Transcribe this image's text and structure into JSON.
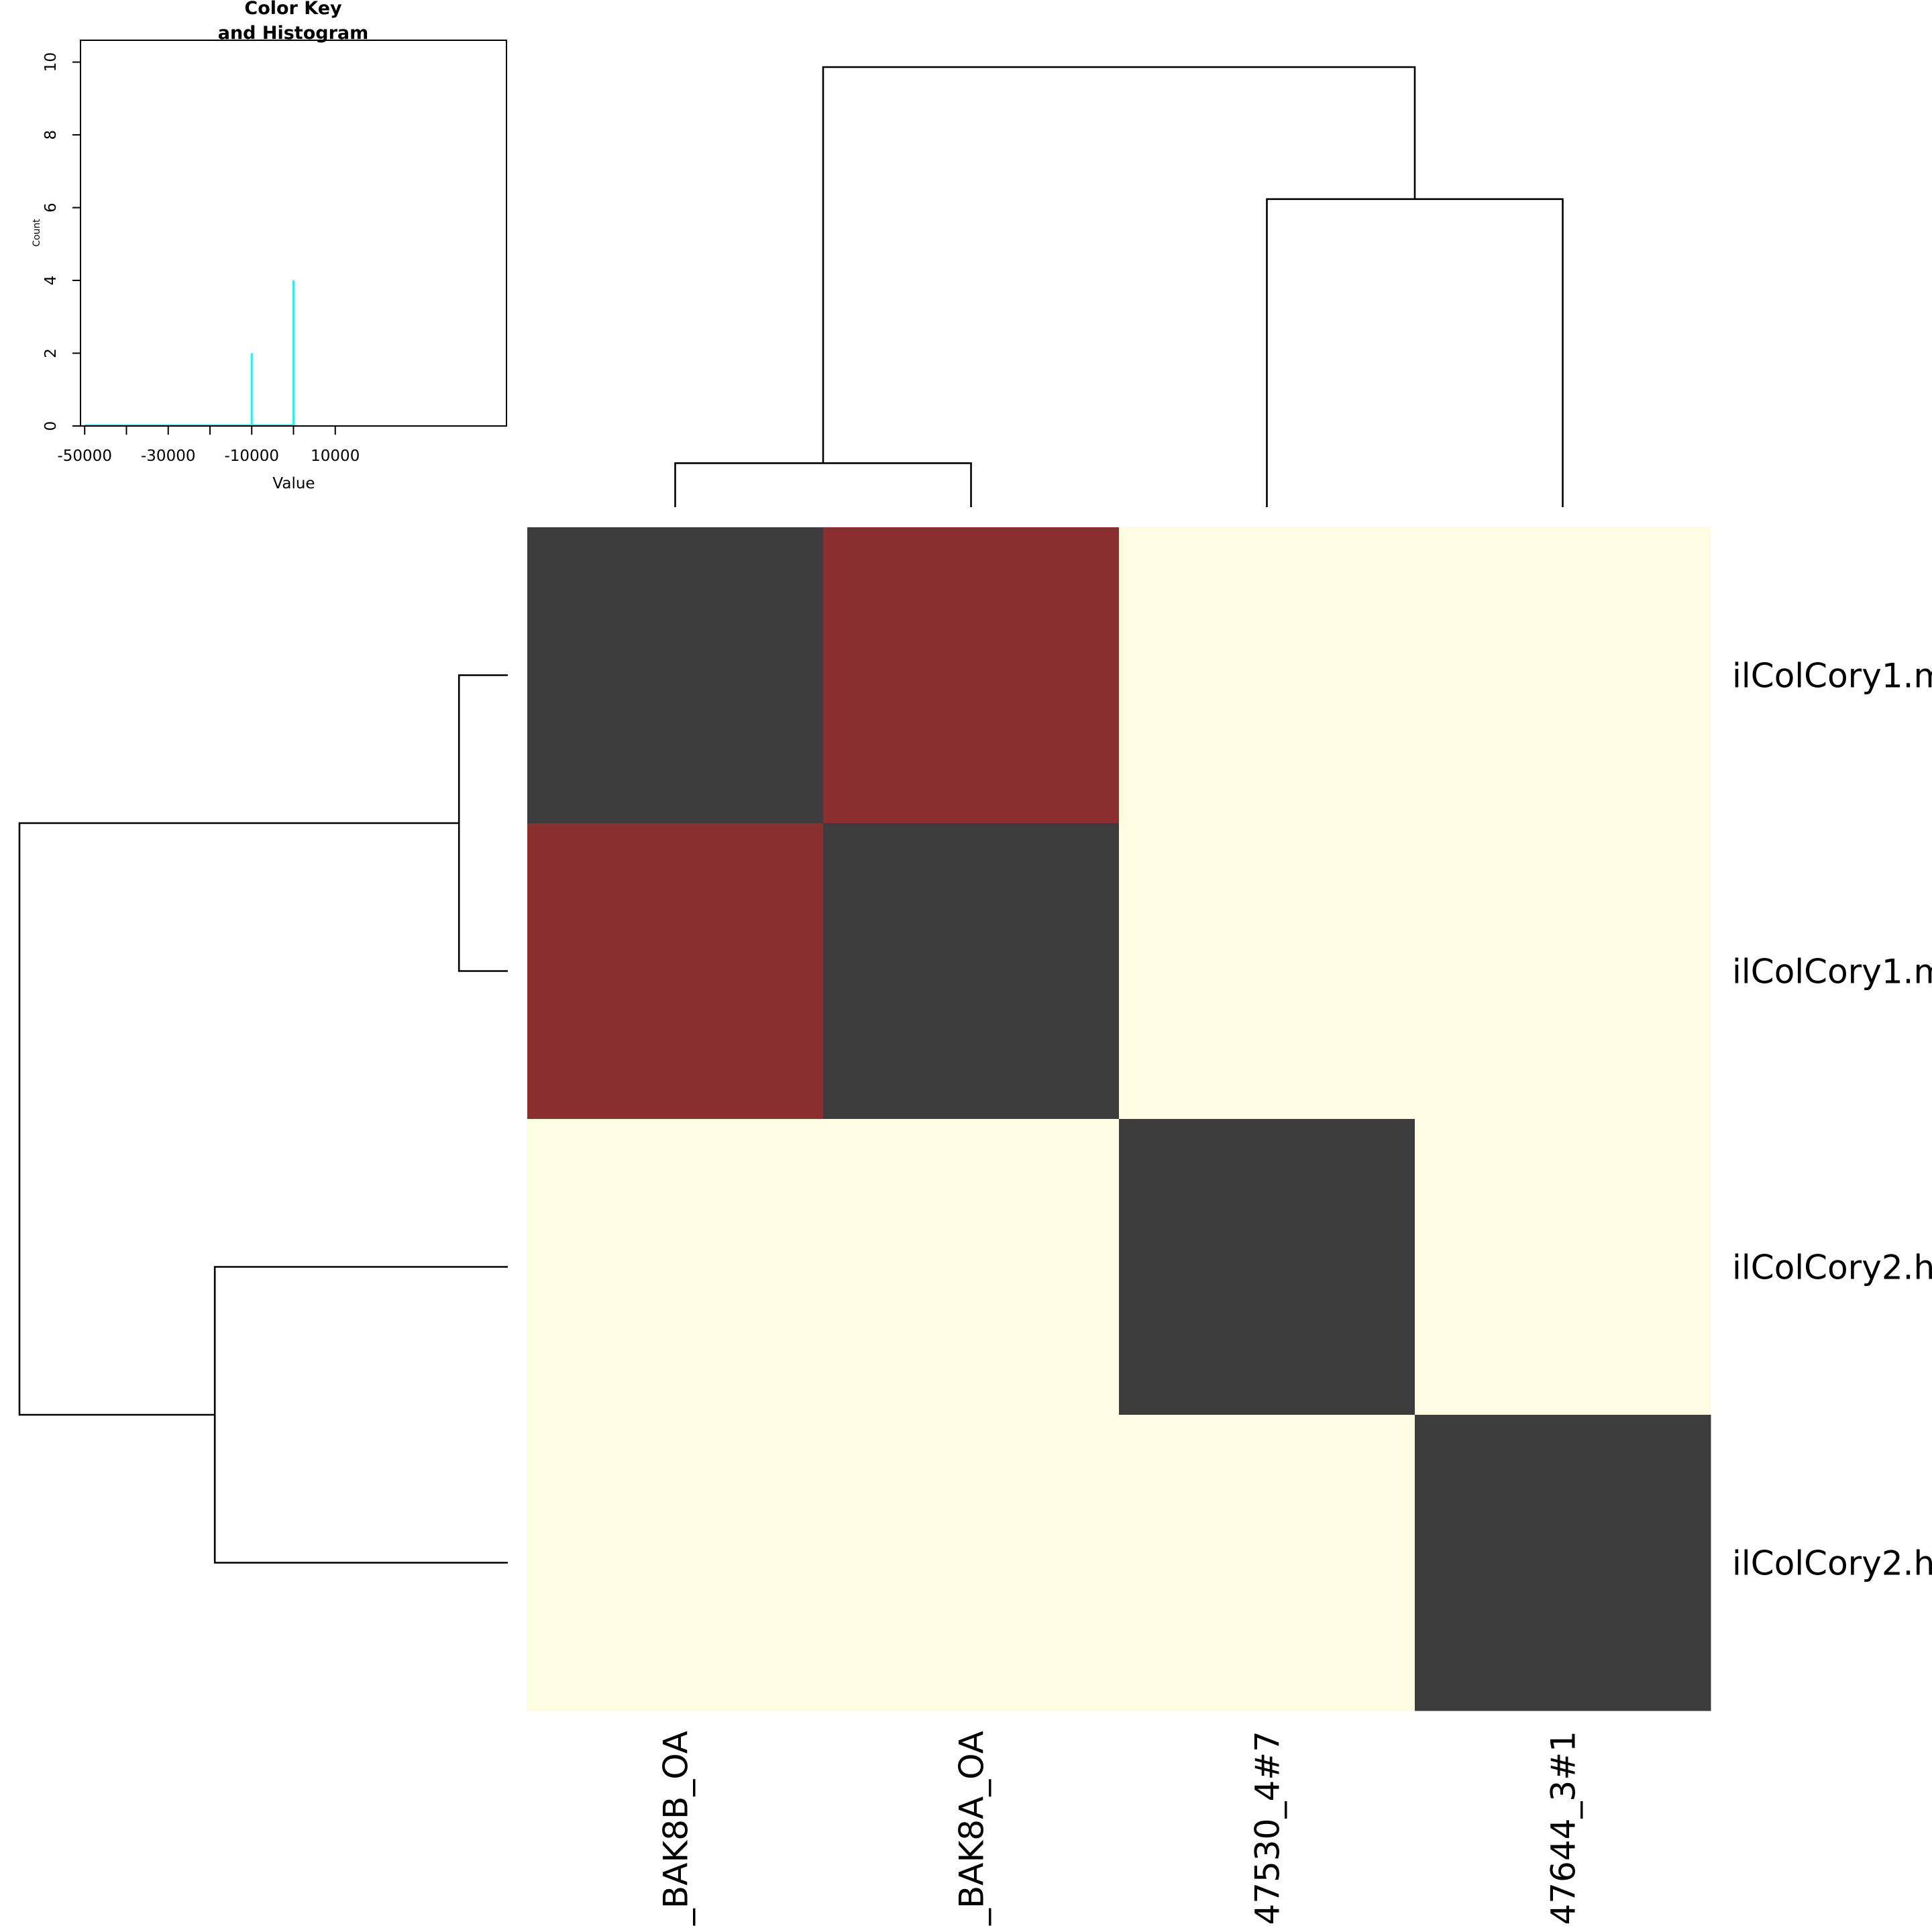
{
  "chart_data": {
    "type": "heatmap",
    "rows": [
      "ilColCory1.m",
      "ilColCory1.m",
      "ilColCory2.h",
      "ilColCory2.h"
    ],
    "columns": [
      "_BAK8B_OA",
      "_BAK8A_OA",
      "47530_4#7",
      "47644_3#1"
    ],
    "cell_colors": [
      [
        "#3c3c3c",
        "#8b2e2f",
        "#fefde2",
        "#fefde2"
      ],
      [
        "#8b2e2f",
        "#3c3c3c",
        "#fefde2",
        "#fefde2"
      ],
      [
        "#fefde2",
        "#fefde2",
        "#3c3c3c",
        "#fefde2"
      ],
      [
        "#fefde2",
        "#fefde2",
        "#fefde2",
        "#3c3c3c"
      ]
    ],
    "row_dendrogram": {
      "merges": [
        [
          0,
          1,
          0.1
        ],
        [
          2,
          3,
          0.6
        ],
        [
          "a",
          "b",
          1.0
        ]
      ]
    },
    "col_dendrogram": {
      "merges": [
        [
          0,
          1,
          0.1
        ],
        [
          2,
          3,
          0.7
        ],
        [
          "a",
          "b",
          1.0
        ]
      ]
    },
    "color_key": {
      "title_line1": "Color Key",
      "title_line2": "and Histogram",
      "xlabel": "Value",
      "ylabel": "Count",
      "x_ticks": [
        -50000,
        -40000,
        -30000,
        -20000,
        -10000,
        0,
        10000
      ],
      "x_tick_labels": [
        "-50000",
        "-30000",
        "-10000",
        "10000"
      ],
      "x_tick_label_values": [
        -50000,
        -30000,
        -10000,
        10000
      ],
      "xlim": [
        -51000,
        51000
      ],
      "y_ticks": [
        0,
        2,
        4,
        6,
        8,
        10
      ],
      "y_tick_labels": [
        "0",
        "2",
        "4",
        "6",
        "8",
        "10"
      ],
      "ylim": [
        0,
        10.6
      ],
      "histogram_color": "#00ffff",
      "histogram": [
        {
          "x": -10000,
          "count": 2
        },
        {
          "x": 0,
          "count": 4
        }
      ],
      "baseline_range": [
        -50000,
        0
      ]
    }
  }
}
